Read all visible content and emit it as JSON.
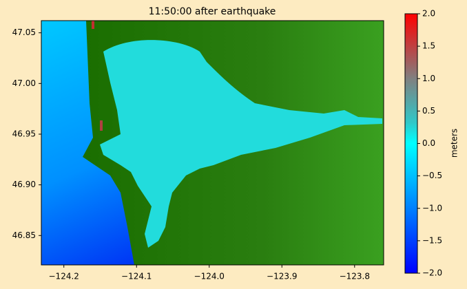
{
  "chart_data": {
    "type": "map",
    "title": "11:50:00 after earthquake",
    "xlim": [
      -124.231,
      -123.76
    ],
    "ylim": [
      46.821,
      47.062
    ],
    "xticks": [
      {
        "value": -124.2,
        "label": "−124.2"
      },
      {
        "value": -124.1,
        "label": "−124.1"
      },
      {
        "value": -124.0,
        "label": "−124.0"
      },
      {
        "value": -123.9,
        "label": "−123.9"
      },
      {
        "value": -123.8,
        "label": "−123.8"
      }
    ],
    "yticks": [
      {
        "value": 46.85,
        "label": "46.85"
      },
      {
        "value": 46.9,
        "label": "46.90"
      },
      46.95,
      {
        "value": 47.0,
        "label": "47.00"
      },
      47.05
    ],
    "colorbar": {
      "label": "meters",
      "clim": [
        -2,
        2
      ],
      "ticks": [
        {
          "value": -2,
          "label": "−2.0"
        },
        {
          "value": -1.5,
          "label": "−1.5"
        },
        {
          "value": -1,
          "label": "−1.0"
        },
        {
          "value": -0.5,
          "label": "−0.5"
        },
        {
          "value": 0,
          "label": "0.0"
        },
        0.5,
        {
          "value": 1,
          "label": "1.0"
        },
        1.5,
        {
          "value": 2,
          "label": "2.0"
        }
      ]
    }
  }
}
